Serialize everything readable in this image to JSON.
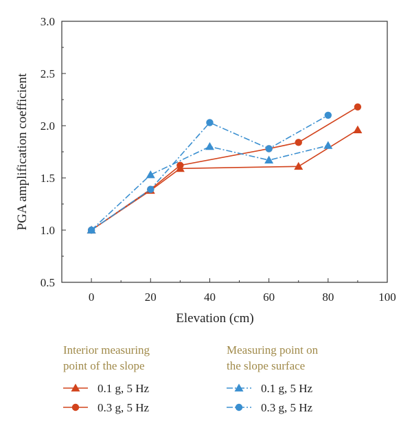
{
  "chart_data": {
    "type": "line",
    "xlabel": "Elevation (cm)",
    "ylabel": "PGA amplification coefficient",
    "xlim": [
      -10,
      100
    ],
    "ylim": [
      0.5,
      3.0
    ],
    "x_ticks": [
      0,
      20,
      40,
      60,
      80,
      100
    ],
    "y_ticks": [
      0.5,
      1.0,
      1.5,
      2.0,
      2.5,
      3.0
    ],
    "x_tick_labels": [
      "0",
      "20",
      "40",
      "60",
      "80",
      "100"
    ],
    "y_tick_labels": [
      "0.5",
      "1.0",
      "1.5",
      "2.0",
      "2.5",
      "3.0"
    ],
    "grid": false,
    "legend_position": "bottom",
    "legend_groups": [
      {
        "heading": [
          "Interior measuring",
          "point of the slope"
        ],
        "series_indices": [
          0,
          1
        ]
      },
      {
        "heading": [
          "Measuring point on",
          "the slope surface"
        ],
        "series_indices": [
          2,
          3
        ]
      }
    ],
    "series": [
      {
        "name": "0.1 g, 5 Hz",
        "color": "#d2431c",
        "marker": "triangle",
        "dash": "solid",
        "x": [
          0,
          20,
          30,
          70,
          90
        ],
        "y": [
          1.0,
          1.38,
          1.59,
          1.61,
          1.96
        ]
      },
      {
        "name": "0.3 g, 5 Hz",
        "color": "#d2431c",
        "marker": "circle",
        "dash": "solid",
        "x": [
          0,
          20,
          30,
          60,
          70,
          90
        ],
        "y": [
          1.0,
          1.39,
          1.62,
          1.78,
          1.84,
          2.18
        ]
      },
      {
        "name": "0.1 g, 5 Hz",
        "color": "#3a8fd0",
        "marker": "triangle",
        "dash": "dashdot",
        "x": [
          0,
          20,
          40,
          60,
          80
        ],
        "y": [
          1.0,
          1.53,
          1.8,
          1.67,
          1.81
        ]
      },
      {
        "name": "0.3 g, 5 Hz",
        "color": "#3a8fd0",
        "marker": "circle",
        "dash": "dashdot",
        "x": [
          0,
          20,
          40,
          60,
          80
        ],
        "y": [
          1.0,
          1.39,
          2.03,
          1.78,
          2.1
        ]
      }
    ]
  }
}
